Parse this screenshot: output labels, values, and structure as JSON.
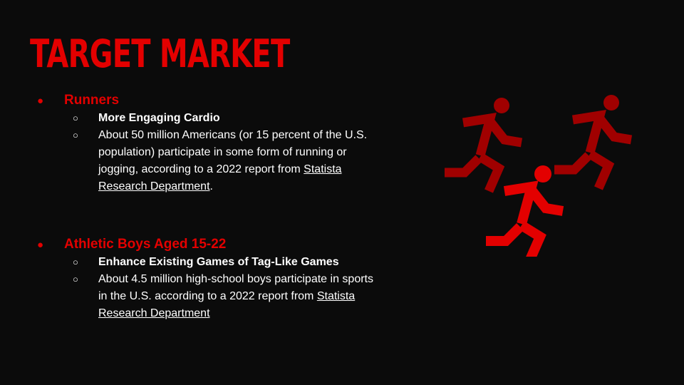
{
  "title": "TARGET MARKET",
  "sections": [
    {
      "heading": "Runners",
      "items": [
        {
          "text": "More Engaging Cardio"
        },
        {
          "text": "About 50 million Americans (or 15 percent of the U.S. population) participate in some form of running or jogging, according to a 2022 report from ",
          "link": "Statista Research Department",
          "suffix": "."
        }
      ]
    },
    {
      "heading": "Athletic Boys Aged 15-22",
      "items": [
        {
          "text": "Enhance Existing Games of Tag-Like Games"
        },
        {
          "text": "About 4.5 million high-school boys participate in sports in the U.S. according to a 2022 report from ",
          "link": "Statista Research Department",
          "suffix": ""
        }
      ]
    }
  ],
  "icons": {
    "illustration": "running-people-icon"
  },
  "colors": {
    "accent": "#e30000",
    "accent_dark": "#a00000",
    "background": "#0b0b0b",
    "text": "#ffffff"
  }
}
